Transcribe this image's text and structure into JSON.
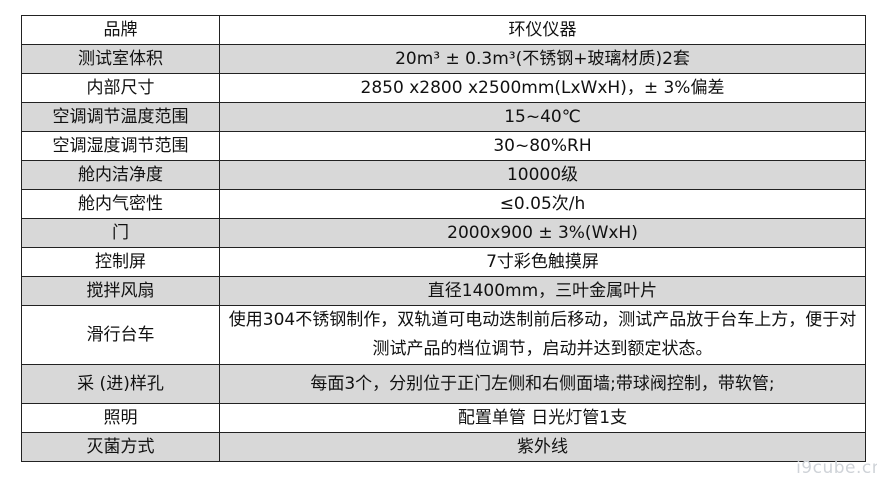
{
  "rows": [
    {
      "key": "品牌",
      "value": "环仪仪器"
    },
    {
      "key": "测试室体积",
      "value": "20m³ ± 0.3m³(不锈钢+玻璃材质)2套"
    },
    {
      "key": "内部尺寸",
      "value": "2850 x2800 x2500mm(LxWxH)，± 3%偏差"
    },
    {
      "key": "空调调节温度范围",
      "value": "15~40℃"
    },
    {
      "key": "空调湿度调节范围",
      "value": "30~80%RH"
    },
    {
      "key": "舱内洁净度",
      "value": "10000级"
    },
    {
      "key": "舱内气密性",
      "value": "≤0.05次/h"
    },
    {
      "key": "门",
      "value": "2000x900 ± 3%(WxH)"
    },
    {
      "key": "控制屏",
      "value": "7寸彩色触摸屏"
    },
    {
      "key": "搅拌风扇",
      "value": "直径1400mm，三叶金属叶片"
    },
    {
      "key": "滑行台车",
      "value": "使用304不锈钢制作，双轨道可电动迭制前后移动，测试产品放于台车上方，便于对测试产品的档位调节，启动并达到额定状态。"
    },
    {
      "key": "采 (进)样孔",
      "value": "每面3个，分别位于正门左侧和右侧面墙;带球阀控制，带软管;"
    },
    {
      "key": "照明",
      "value": "配置单管 日光灯管1支"
    },
    {
      "key": "灭菌方式",
      "value": "紫外线"
    }
  ],
  "watermark": "i9cube.cn"
}
